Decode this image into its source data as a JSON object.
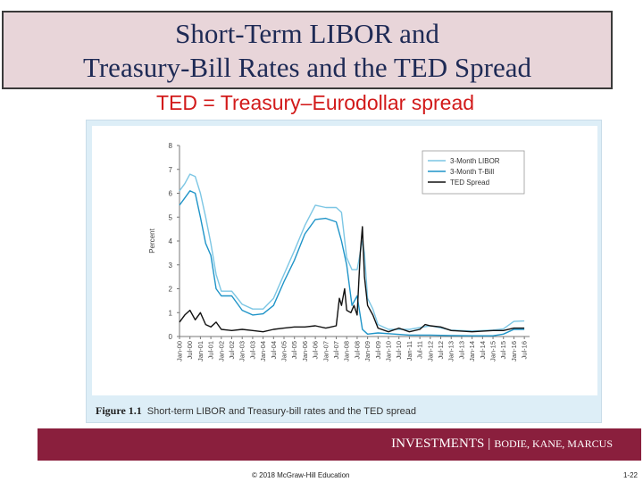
{
  "slide": {
    "title_line1": "Short-Term LIBOR and",
    "title_line2": "Treasury-Bill Rates and the TED Spread",
    "subtitle": "TED = Treasury–Eurodollar spread",
    "figure_number": "Figure 1.1",
    "figure_caption": "Short-term LIBOR and Treasury-bill rates and the TED spread",
    "footer_title": "INVESTMENTS",
    "footer_separator": "|",
    "footer_authors": "BODIE, KANE, MARCUS",
    "copyright": "© 2018 McGraw-Hill Education",
    "page_number": "1-22"
  },
  "colors": {
    "libor": "#7cc6e4",
    "tbill": "#1f94c8",
    "ted": "#111111",
    "title_bg": "#e8d5d9",
    "footer_bg": "#8a1f3d",
    "subtitle": "#d21a1a"
  },
  "chart_data": {
    "type": "line",
    "title": "",
    "xlabel": "",
    "ylabel": "Percent",
    "ylim": [
      0,
      8
    ],
    "xlim": [
      2000,
      2016.75
    ],
    "grid": false,
    "legend_position": "top-right",
    "yticks": [
      "0",
      "1",
      "2",
      "3",
      "4",
      "5",
      "6",
      "7",
      "8"
    ],
    "xtick_labels": [
      "Jan-00",
      "Jul-00",
      "Jan-01",
      "Jul-01",
      "Jan-02",
      "Jul-02",
      "Jan-03",
      "Jul-03",
      "Jan-04",
      "Jul-04",
      "Jan-05",
      "Jul-05",
      "Jan-06",
      "Jul-06",
      "Jan-07",
      "Jul-07",
      "Jan-08",
      "Jul-08",
      "Jan-09",
      "Jul-09",
      "Jan-10",
      "Jul-10",
      "Jan-11",
      "Jul-11",
      "Jan-12",
      "Jul-12",
      "Jan-13",
      "Jul-13",
      "Jan-14",
      "Jul-14",
      "Jan-15",
      "Jul-15",
      "Jan-16",
      "Jul-16"
    ],
    "series": [
      {
        "name": "3-Month LIBOR",
        "color_key": "libor",
        "x": [
          2000.0,
          2000.25,
          2000.5,
          2000.75,
          2001.0,
          2001.25,
          2001.5,
          2001.75,
          2002.0,
          2002.5,
          2003.0,
          2003.5,
          2004.0,
          2004.5,
          2005.0,
          2005.5,
          2006.0,
          2006.5,
          2007.0,
          2007.5,
          2007.75,
          2008.0,
          2008.25,
          2008.5,
          2008.75,
          2008.85,
          2009.0,
          2009.25,
          2009.5,
          2010.0,
          2011.0,
          2012.0,
          2013.0,
          2014.0,
          2015.0,
          2015.5,
          2016.0,
          2016.5
        ],
        "y": [
          6.1,
          6.4,
          6.8,
          6.7,
          6.0,
          5.0,
          3.9,
          2.6,
          1.9,
          1.9,
          1.35,
          1.15,
          1.15,
          1.6,
          2.6,
          3.6,
          4.65,
          5.5,
          5.4,
          5.4,
          5.2,
          3.3,
          2.8,
          2.8,
          4.0,
          3.5,
          1.6,
          1.15,
          0.5,
          0.3,
          0.3,
          0.45,
          0.27,
          0.23,
          0.27,
          0.32,
          0.63,
          0.65
        ]
      },
      {
        "name": "3-Month T-Bill",
        "color_key": "tbill",
        "x": [
          2000.0,
          2000.25,
          2000.5,
          2000.75,
          2001.0,
          2001.25,
          2001.5,
          2001.75,
          2002.0,
          2002.5,
          2003.0,
          2003.5,
          2004.0,
          2004.5,
          2005.0,
          2005.5,
          2006.0,
          2006.5,
          2007.0,
          2007.5,
          2007.75,
          2008.0,
          2008.25,
          2008.5,
          2008.75,
          2009.0,
          2009.5,
          2010.0,
          2011.0,
          2012.0,
          2013.0,
          2014.0,
          2015.0,
          2015.5,
          2016.0,
          2016.5
        ],
        "y": [
          5.5,
          5.8,
          6.1,
          6.0,
          5.0,
          3.9,
          3.4,
          2.0,
          1.7,
          1.7,
          1.1,
          0.9,
          0.95,
          1.3,
          2.3,
          3.2,
          4.3,
          4.9,
          4.95,
          4.8,
          4.0,
          3.0,
          1.3,
          1.7,
          0.3,
          0.1,
          0.15,
          0.12,
          0.06,
          0.06,
          0.04,
          0.03,
          0.03,
          0.1,
          0.3,
          0.3
        ]
      },
      {
        "name": "TED Spread",
        "color_key": "ted",
        "x": [
          2000.0,
          2000.25,
          2000.5,
          2000.75,
          2001.0,
          2001.25,
          2001.5,
          2001.75,
          2002.0,
          2002.5,
          2003.0,
          2003.5,
          2004.0,
          2004.5,
          2005.0,
          2005.5,
          2006.0,
          2006.5,
          2007.0,
          2007.25,
          2007.5,
          2007.65,
          2007.75,
          2007.9,
          2008.0,
          2008.2,
          2008.35,
          2008.5,
          2008.65,
          2008.75,
          2008.85,
          2009.0,
          2009.25,
          2009.5,
          2010.0,
          2010.5,
          2011.0,
          2011.5,
          2011.75,
          2012.0,
          2012.5,
          2013.0,
          2014.0,
          2015.0,
          2015.5,
          2016.0,
          2016.5
        ],
        "y": [
          0.6,
          0.9,
          1.1,
          0.7,
          1.0,
          0.5,
          0.4,
          0.6,
          0.3,
          0.25,
          0.3,
          0.25,
          0.2,
          0.3,
          0.35,
          0.4,
          0.4,
          0.45,
          0.35,
          0.4,
          0.45,
          1.6,
          1.3,
          2.0,
          1.1,
          1.0,
          1.3,
          0.9,
          3.5,
          4.6,
          2.5,
          1.3,
          0.9,
          0.35,
          0.2,
          0.35,
          0.2,
          0.3,
          0.5,
          0.45,
          0.4,
          0.25,
          0.2,
          0.25,
          0.25,
          0.35,
          0.35
        ]
      }
    ]
  }
}
